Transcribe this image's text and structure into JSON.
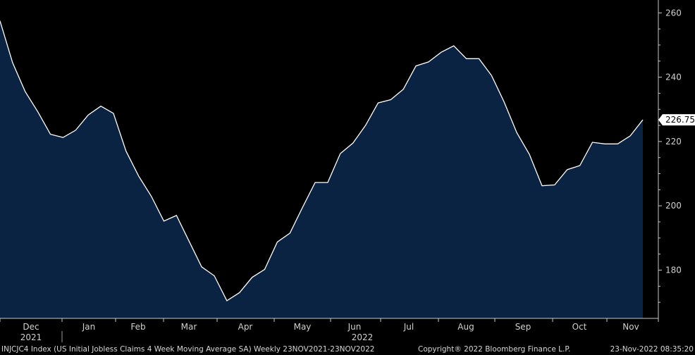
{
  "chart_data": {
    "type": "area",
    "x_label_months": [
      "Dec",
      "Jan",
      "Feb",
      "Mar",
      "Apr",
      "May",
      "Jun",
      "Jul",
      "Aug",
      "Sep",
      "Oct",
      "Nov"
    ],
    "year_labels": [
      "2021",
      "2022"
    ],
    "series": [
      {
        "values": [
          257.5,
          244.5,
          235.5,
          229.25,
          222.25,
          221.25,
          223.5,
          228.25,
          231.0,
          228.75,
          217.0,
          209.25,
          203.0,
          195.25,
          197.0,
          189.0,
          181.0,
          178.25,
          170.5,
          173.0,
          177.75,
          180.25,
          188.75,
          191.5,
          199.5,
          207.25,
          207.25,
          216.25,
          219.5,
          225.0,
          232.0,
          233.0,
          236.25,
          243.5,
          244.75,
          247.75,
          249.75,
          245.75,
          245.75,
          240.5,
          232.25,
          222.75,
          216.0,
          206.25,
          206.5,
          211.25,
          212.5,
          219.75,
          219.25,
          219.25,
          221.75,
          226.75
        ]
      }
    ],
    "ylim": [
      165,
      264
    ],
    "yticks": [
      "180",
      "200",
      "220",
      "240",
      "260"
    ],
    "last_value_label": "226.75",
    "colors": {
      "line": "#ffffff",
      "fill": "#0a2342",
      "background": "#000000",
      "axis": "#c8c8c8"
    }
  },
  "footer": {
    "description": "INJCJC4 Index (US Initial Jobless Claims 4 Week Moving Average SA)  Weekly 23NOV2021-23NOV2022",
    "copyright": "Copyright® 2022 Bloomberg Finance L.P.",
    "timestamp": "23-Nov-2022 08:35:20"
  }
}
